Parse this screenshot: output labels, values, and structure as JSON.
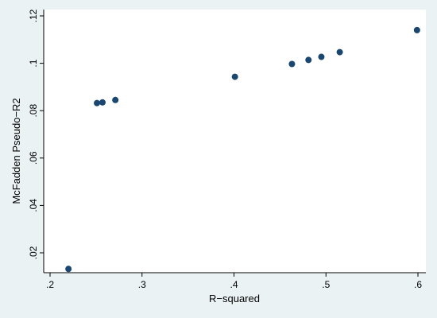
{
  "chart_data": {
    "type": "scatter",
    "title": "",
    "xlabel": "R−squared",
    "ylabel": "McFadden Pseudo−R2",
    "xlim": [
      0.2,
      0.6
    ],
    "ylim": [
      0.02,
      0.12
    ],
    "x_ticks": [
      {
        "value": 0.2,
        "label": ".2"
      },
      {
        "value": 0.3,
        "label": ".3"
      },
      {
        "value": 0.4,
        "label": ".4"
      },
      {
        "value": 0.5,
        "label": ".5"
      },
      {
        "value": 0.6,
        "label": ".6"
      }
    ],
    "y_ticks": [
      {
        "value": 0.02,
        "label": ".02"
      },
      {
        "value": 0.04,
        "label": ".04"
      },
      {
        "value": 0.06,
        "label": ".06"
      },
      {
        "value": 0.08,
        "label": ".08"
      },
      {
        "value": 0.1,
        "label": ".1"
      },
      {
        "value": 0.12,
        "label": ".12"
      }
    ],
    "grid": false,
    "legend": "none",
    "marker_color": "#1a476f",
    "background_color": "#eaf2f3",
    "plot_background_color": "#ffffff",
    "points": [
      {
        "x": 0.22,
        "y": 0.0132
      },
      {
        "x": 0.251,
        "y": 0.0832
      },
      {
        "x": 0.257,
        "y": 0.0835
      },
      {
        "x": 0.271,
        "y": 0.0845
      },
      {
        "x": 0.401,
        "y": 0.0943
      },
      {
        "x": 0.463,
        "y": 0.0997
      },
      {
        "x": 0.481,
        "y": 0.1014
      },
      {
        "x": 0.495,
        "y": 0.1027
      },
      {
        "x": 0.515,
        "y": 0.1047
      },
      {
        "x": 0.599,
        "y": 0.114
      }
    ]
  }
}
